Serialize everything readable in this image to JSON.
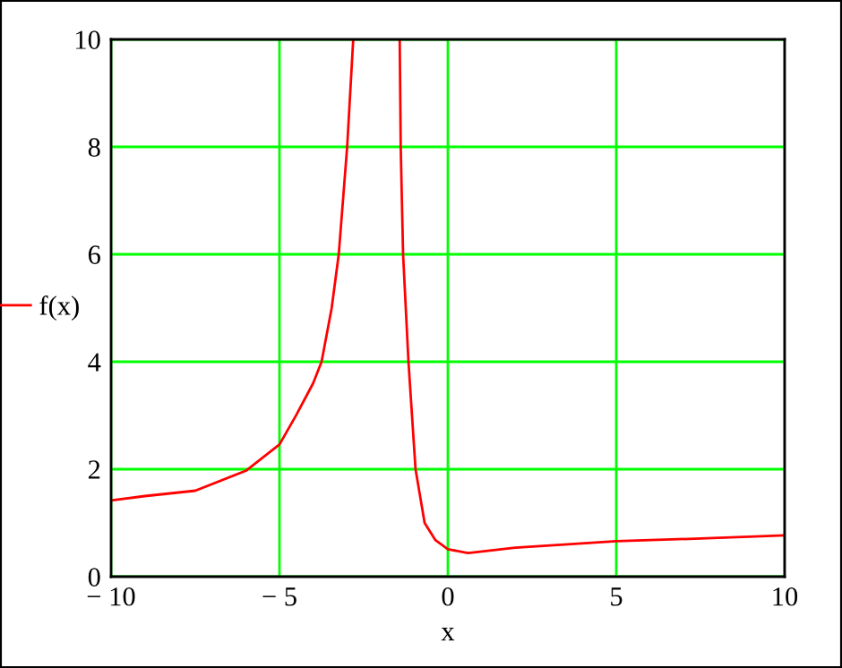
{
  "chart_data": {
    "type": "line",
    "xlabel": "x",
    "series": [
      {
        "name": "f(x)",
        "color": "#ff0000",
        "x": [
          -10,
          -9,
          -7.5,
          -6,
          -5,
          -4.5,
          -4,
          -3.75,
          -3.45,
          -3.24,
          -2.99,
          -2.81,
          -2.2,
          -1.43,
          -1.4,
          -1.33,
          -1.17,
          -0.96,
          -0.69,
          -0.37,
          0,
          0.6,
          2,
          5,
          7.5,
          10
        ],
        "values": [
          1.42,
          1.5,
          1.6,
          1.97,
          2.46,
          3.01,
          3.6,
          4,
          5,
          6,
          8,
          10,
          null,
          10,
          8,
          6,
          4,
          2,
          1,
          0.68,
          0.51,
          0.44,
          0.54,
          0.66,
          0.71,
          0.77
        ]
      }
    ],
    "xlim": [
      -10,
      10
    ],
    "ylim": [
      0,
      10
    ],
    "xticks": [
      {
        "value": -10,
        "label": "− 10"
      },
      {
        "value": -5,
        "label": "− 5"
      },
      0,
      5,
      10
    ],
    "yticks": [
      0,
      2,
      4,
      6,
      8,
      10
    ],
    "grid": true,
    "legend": "left",
    "marker": "none",
    "line_style": "solid"
  }
}
